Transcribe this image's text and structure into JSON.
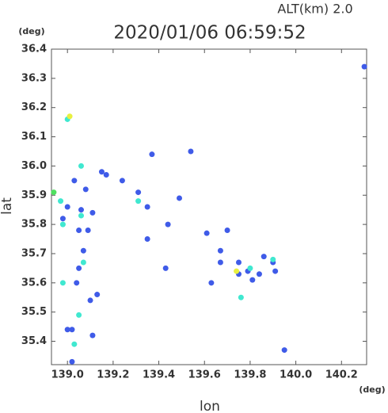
{
  "chart_data": {
    "type": "scatter",
    "title": "2020/01/06 06:59:52",
    "subtitle": "ALT(km) 2.0",
    "x_label": "lon",
    "y_label": "lat",
    "x_unit": "(deg)",
    "y_unit": "(deg)",
    "xlim": [
      138.93,
      140.31
    ],
    "ylim": [
      35.32,
      36.4
    ],
    "xticks": [
      {
        "value": 139,
        "label": "139.0"
      },
      139.2,
      139.4,
      139.6,
      139.8,
      {
        "value": 140,
        "label": "140.0"
      },
      140.2
    ],
    "yticks": [
      35.4,
      35.5,
      35.6,
      35.7,
      35.8,
      35.9,
      {
        "value": 36,
        "label": "36.0"
      },
      36.1,
      36.2,
      36.3,
      36.4
    ],
    "grid": false,
    "series": [
      {
        "color": "#3f5be8",
        "x": [
          140.3,
          139.95,
          139.02,
          139.11,
          139.0,
          139.02,
          139.04,
          139.05,
          139.07,
          139.05,
          139.09,
          139.06,
          139.11,
          139.08,
          139.03,
          139.1,
          139.13,
          139.24,
          139.31,
          139.35,
          139.35,
          139.49,
          139.44,
          139.61,
          139.7,
          139.67,
          139.63,
          139.67,
          139.75,
          139.79,
          139.81,
          139.84,
          139.86,
          139.9,
          139.91,
          139.43,
          139.17,
          139.15,
          139.37,
          139.54,
          139.0,
          138.98,
          139.75
        ],
        "values": [
          36.34,
          35.37,
          35.33,
          35.42,
          35.44,
          35.44,
          35.6,
          35.65,
          35.71,
          35.78,
          35.78,
          35.85,
          35.84,
          35.92,
          35.95,
          35.54,
          35.56,
          35.95,
          35.91,
          35.86,
          35.75,
          35.89,
          35.8,
          35.77,
          35.78,
          35.71,
          35.6,
          35.67,
          35.67,
          35.64,
          35.61,
          35.63,
          35.69,
          35.67,
          35.64,
          35.65,
          35.97,
          35.98,
          36.04,
          36.05,
          35.86,
          35.82,
          35.63
        ]
      },
      {
        "color": "#40e8d0",
        "x": [
          139.0,
          139.06,
          138.97,
          138.98,
          138.98,
          139.03,
          139.05,
          139.07,
          139.06,
          139.76,
          139.9,
          139.8,
          139.31
        ],
        "values": [
          36.16,
          36.0,
          35.88,
          35.8,
          35.6,
          35.39,
          35.49,
          35.67,
          35.83,
          35.55,
          35.68,
          35.65,
          35.88
        ]
      },
      {
        "color": "#50e060",
        "x": [
          138.94
        ],
        "values": [
          35.91
        ]
      },
      {
        "color": "#e8f040",
        "x": [
          139.01,
          139.74
        ],
        "values": [
          36.17,
          35.64
        ]
      }
    ]
  }
}
